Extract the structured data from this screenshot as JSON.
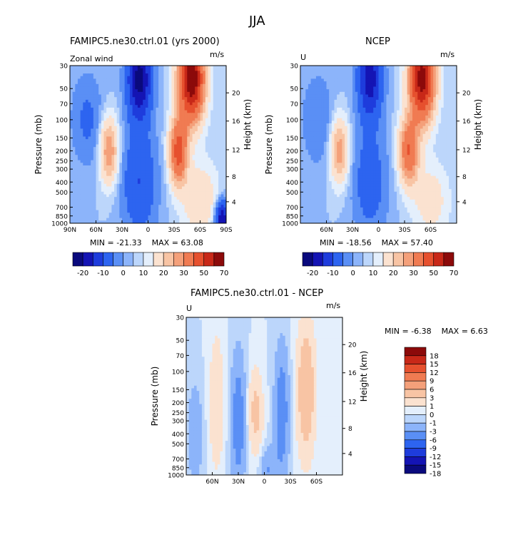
{
  "figure": {
    "title": "JJA"
  },
  "colors": {
    "main_scale": [
      "#0a0a7d",
      "#1414b4",
      "#1e3cdc",
      "#2d64f0",
      "#5a8ff5",
      "#8cb4fa",
      "#bcd6fb",
      "#e4effc",
      "#fbe2d0",
      "#f8c4a4",
      "#f4a07a",
      "#f07b52",
      "#e6502e",
      "#c82818",
      "#8c0a0a"
    ],
    "diff_scale": [
      "#0a0a7d",
      "#1414b4",
      "#1e3cdc",
      "#2d64f0",
      "#5a8ff5",
      "#8cb4fa",
      "#bcd6fb",
      "#e4effc",
      "#fbe2d0",
      "#f8c4a4",
      "#f4a07a",
      "#f07b52",
      "#e6502e",
      "#c82818",
      "#8c0a0a"
    ]
  },
  "chart_data": [
    {
      "type": "heatmap",
      "title": "FAMIPC5.ne30.ctrl.01 (yrs 2000)",
      "variable_label": "Zonal wind",
      "units": "m/s",
      "ylabel": "Pressure (mb)",
      "ylabel_right": "Height (km)",
      "yticks": [
        "30",
        "50",
        "70",
        "100",
        "150",
        "200",
        "250",
        "300",
        "400",
        "500",
        "700",
        "850",
        "1000"
      ],
      "yticks_right": [
        "20",
        "16",
        "12",
        "8",
        "4"
      ],
      "xticks": [
        "90N",
        "60N",
        "30N",
        "0",
        "30S",
        "60S",
        "90S"
      ],
      "xlim": [
        90,
        -90
      ],
      "stats": {
        "min_label": "MIN =",
        "min": "-21.33",
        "max_label": "MAX =",
        "max": "63.08"
      },
      "colorbar_labels": [
        "-20",
        "-10",
        "0",
        "10",
        "20",
        "30",
        "50",
        "70"
      ],
      "colorbar_label_index": [
        1,
        3,
        5,
        7,
        9,
        11,
        13,
        15
      ]
    },
    {
      "type": "heatmap",
      "title": "NCEP",
      "variable_label": "U",
      "units": "m/s",
      "ylabel": "Pressure (mb)",
      "ylabel_right": "Height (km)",
      "yticks": [
        "30",
        "50",
        "70",
        "100",
        "150",
        "200",
        "250",
        "300",
        "400",
        "500",
        "700",
        "850",
        "1000"
      ],
      "yticks_right": [
        "20",
        "16",
        "12",
        "8",
        "4"
      ],
      "xticks": [
        "60N",
        "30N",
        "0",
        "30S",
        "60S"
      ],
      "xlim": [
        90,
        -90
      ],
      "stats": {
        "min_label": "MIN =",
        "min": "-18.56",
        "max_label": "MAX =",
        "max": "57.40"
      },
      "colorbar_labels": [
        "-20",
        "-10",
        "0",
        "10",
        "20",
        "30",
        "50",
        "70"
      ],
      "colorbar_label_index": [
        1,
        3,
        5,
        7,
        9,
        11,
        13,
        15
      ]
    },
    {
      "type": "heatmap",
      "title": "FAMIPC5.ne30.ctrl.01 - NCEP",
      "variable_label": "U",
      "units": "m/s",
      "ylabel": "Pressure (mb)",
      "ylabel_right": "Height (km)",
      "yticks": [
        "30",
        "50",
        "70",
        "100",
        "150",
        "200",
        "250",
        "300",
        "400",
        "500",
        "700",
        "850",
        "1000"
      ],
      "yticks_right": [
        "20",
        "16",
        "12",
        "8",
        "4"
      ],
      "xticks": [
        "60N",
        "30N",
        "0",
        "30S",
        "60S"
      ],
      "xlim": [
        90,
        -90
      ],
      "stats": {
        "min_label": "MIN =",
        "min": "-6.38",
        "max_label": "MAX =",
        "max": "6.63"
      },
      "colorbar_labels": [
        "18",
        "15",
        "12",
        "9",
        "6",
        "3",
        "1",
        "0",
        "-1",
        "-3",
        "-6",
        "-9",
        "-12",
        "-15",
        "-18"
      ]
    }
  ]
}
